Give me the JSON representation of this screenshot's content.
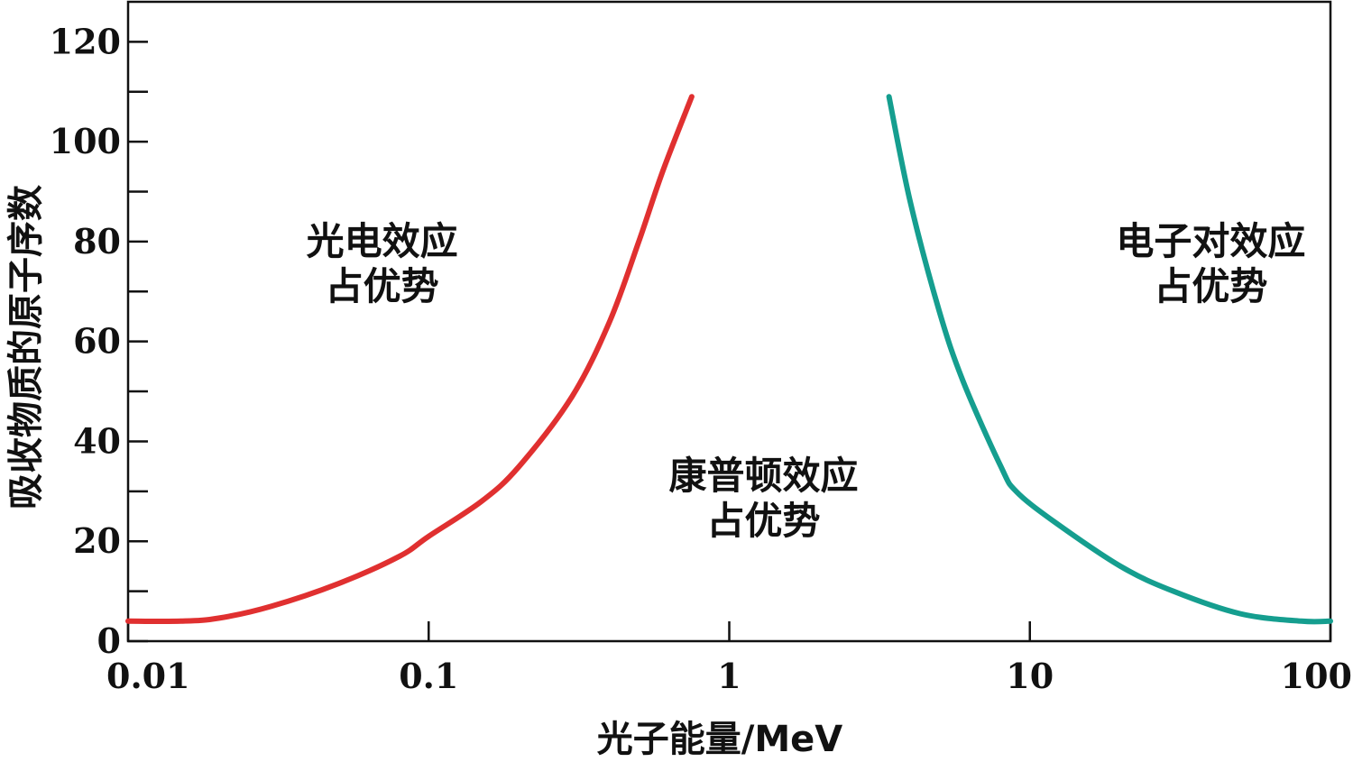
{
  "chart_data": {
    "type": "line",
    "title": "",
    "xlabel": "光子能量/MeV",
    "ylabel": "吸收物质的原子序数",
    "x_scale": "log",
    "xlim": [
      0.01,
      100
    ],
    "ylim": [
      0,
      128
    ],
    "x_ticks": [
      0.01,
      0.1,
      1,
      10,
      100
    ],
    "x_tick_labels": [
      "0.01",
      "0.1",
      "1",
      "10",
      "100"
    ],
    "y_ticks": [
      0,
      20,
      40,
      60,
      80,
      100,
      120
    ],
    "y_tick_labels": [
      "0",
      "20",
      "40",
      "60",
      "80",
      "100",
      "120"
    ],
    "y_minor_ticks": [
      10,
      30,
      50,
      70,
      90,
      110
    ],
    "grid": false,
    "series": [
      {
        "color": "#e03030",
        "points": [
          {
            "x": 0.01,
            "y": 4
          },
          {
            "x": 0.015,
            "y": 4
          },
          {
            "x": 0.02,
            "y": 4.6
          },
          {
            "x": 0.03,
            "y": 7
          },
          {
            "x": 0.05,
            "y": 11.5
          },
          {
            "x": 0.08,
            "y": 17
          },
          {
            "x": 0.1,
            "y": 21
          },
          {
            "x": 0.15,
            "y": 28
          },
          {
            "x": 0.2,
            "y": 35
          },
          {
            "x": 0.3,
            "y": 49
          },
          {
            "x": 0.4,
            "y": 64
          },
          {
            "x": 0.5,
            "y": 80
          },
          {
            "x": 0.6,
            "y": 94
          },
          {
            "x": 0.75,
            "y": 109
          }
        ]
      },
      {
        "color": "#159e8f",
        "points": [
          {
            "x": 3.4,
            "y": 109
          },
          {
            "x": 4,
            "y": 88
          },
          {
            "x": 5,
            "y": 66
          },
          {
            "x": 6,
            "y": 52
          },
          {
            "x": 8,
            "y": 35
          },
          {
            "x": 9,
            "y": 30
          },
          {
            "x": 12,
            "y": 24
          },
          {
            "x": 20,
            "y": 15
          },
          {
            "x": 30,
            "y": 10
          },
          {
            "x": 50,
            "y": 5.5
          },
          {
            "x": 80,
            "y": 4
          },
          {
            "x": 100,
            "y": 4
          }
        ]
      }
    ],
    "annotations": [
      {
        "lines": [
          "光电效应",
          "占优势"
        ],
        "x": 0.07,
        "y": 80
      },
      {
        "lines": [
          "康普顿效应",
          "占优势"
        ],
        "x": 1.3,
        "y": 33
      },
      {
        "lines": [
          "电子对效应",
          "占优势"
        ],
        "x": 40,
        "y": 80
      }
    ]
  }
}
